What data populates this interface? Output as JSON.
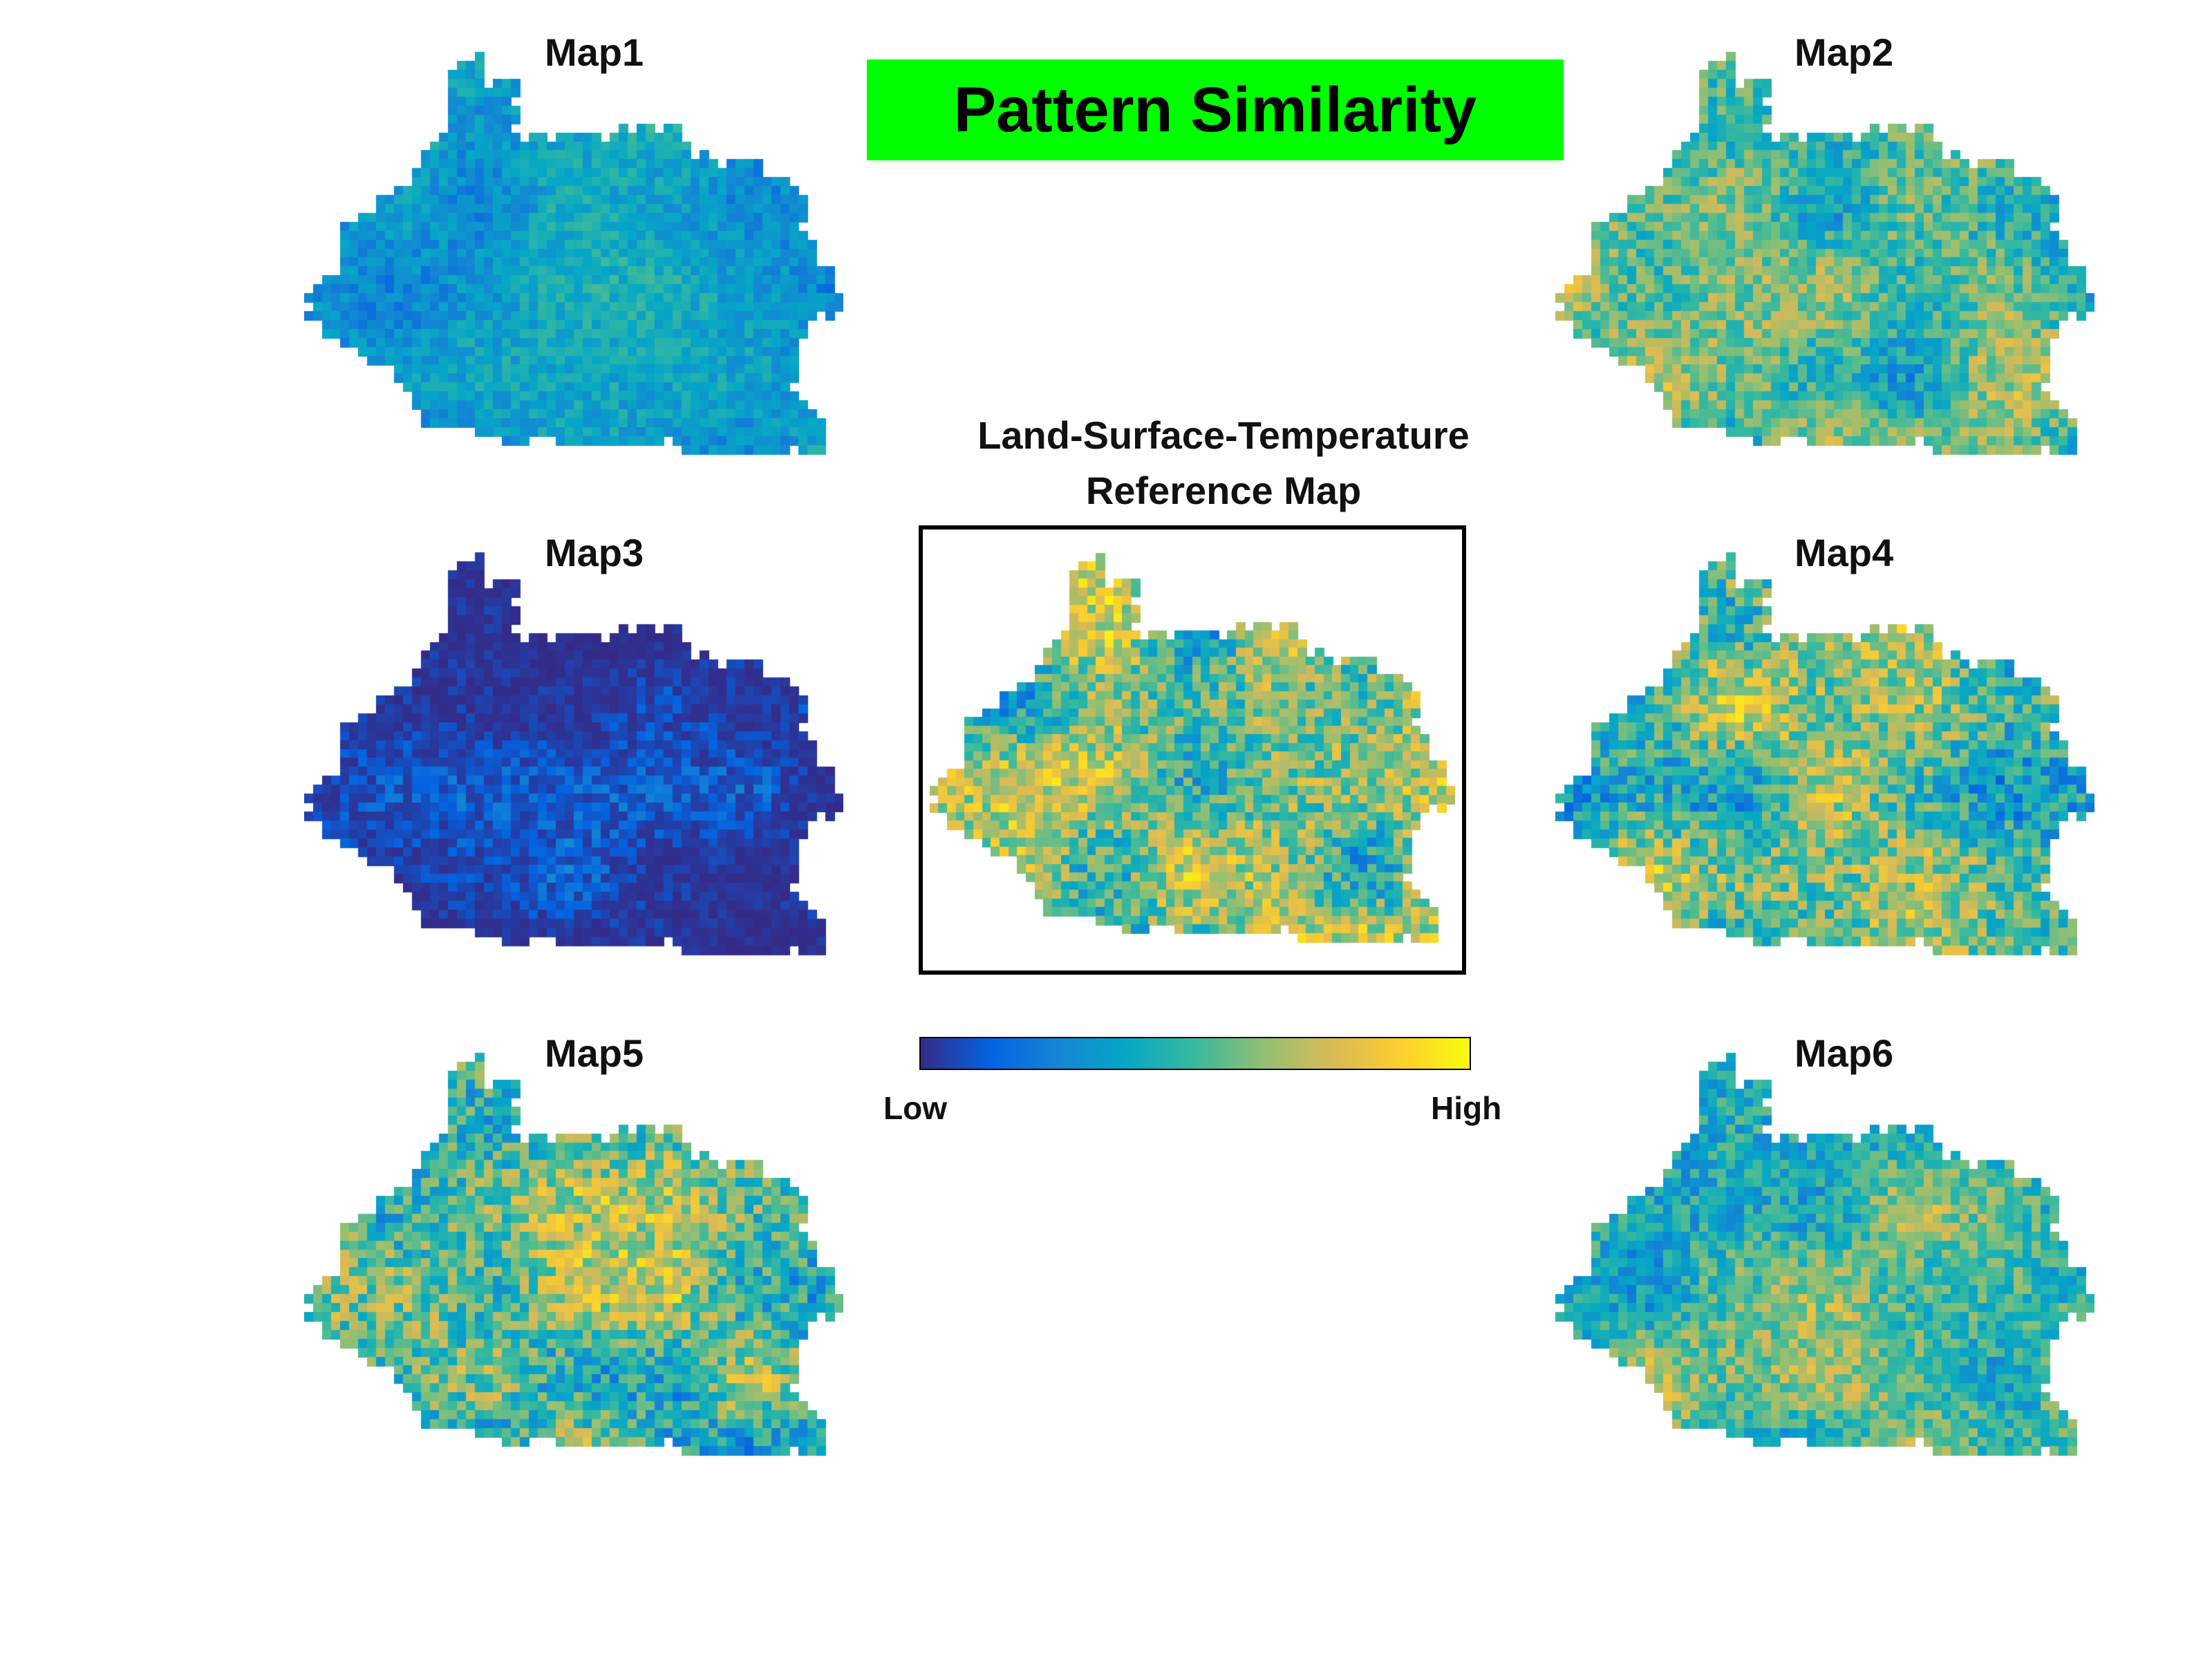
{
  "title": "Pattern Similarity",
  "reference": {
    "title_line1": "Land-Surface-Temperature",
    "title_line2": "Reference Map"
  },
  "maps": [
    {
      "label": "Map1",
      "style": "low_medium"
    },
    {
      "label": "Map2",
      "style": "medium"
    },
    {
      "label": "Map3",
      "style": "very_low"
    },
    {
      "label": "Map4",
      "style": "high"
    },
    {
      "label": "Map5",
      "style": "high"
    },
    {
      "label": "Map6",
      "style": "medium"
    }
  ],
  "colorbar": {
    "low_label": "Low",
    "high_label": "High",
    "colormap": "parula",
    "colors": [
      "#352a87",
      "#0363e1",
      "#1485d4",
      "#06a7c6",
      "#38b99e",
      "#92bf73",
      "#d9ba56",
      "#fcce2e",
      "#f9fb0e"
    ]
  },
  "colors": {
    "title_background": "#00ff00",
    "title_text": "#000000",
    "frame": "#000000"
  }
}
